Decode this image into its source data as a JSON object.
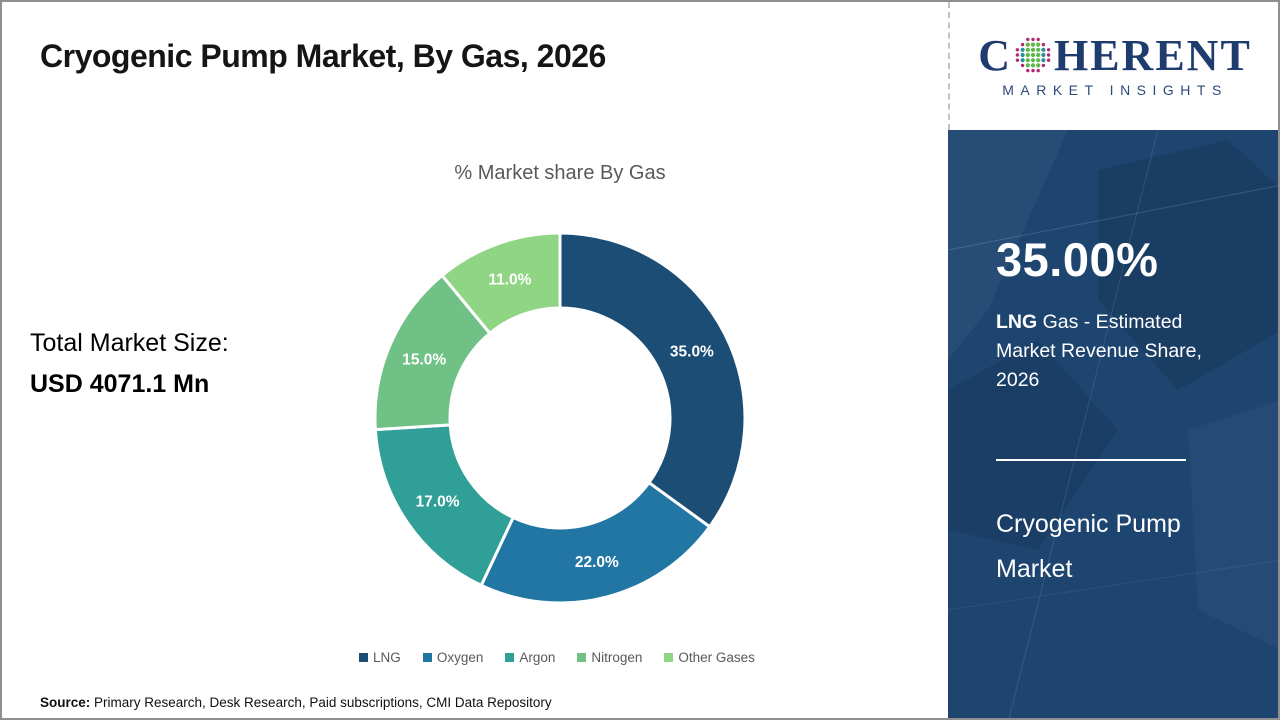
{
  "slide": {
    "title": "Cryogenic Pump Market, By Gas, 2026",
    "source_label": "Source:",
    "source_text": " Primary Research, Desk Research, Paid subscriptions, CMI Data Repository"
  },
  "logo": {
    "brand_prefix": "C",
    "brand_suffix": "HERENT",
    "brand_subtitle": "MARKET INSIGHTS",
    "navy": "#1e3c6e",
    "globe_dot_colors": {
      "outer_ring": "#b62573",
      "inner_side": "#2a8f9e",
      "inner_center": "#5cb849"
    }
  },
  "left_panel": {
    "total_label": "Total Market Size:",
    "total_value": "USD 4071.1 Mn"
  },
  "sidebar": {
    "bg": "#1e4470",
    "highlight_value": "35.00%",
    "highlight_bold": "LNG",
    "highlight_desc": " Gas - Estimated Market Revenue Share, 2026",
    "market_name": "Cryogenic Pump Market"
  },
  "chart_data": {
    "type": "pie",
    "donut": true,
    "title": "% Market share By Gas",
    "categories": [
      "LNG",
      "Oxygen",
      "Argon",
      "Nitrogen",
      "Other Gases"
    ],
    "values": [
      35.0,
      22.0,
      17.0,
      15.0,
      11.0
    ],
    "labels": [
      "35.0%",
      "22.0%",
      "17.0%",
      "15.0%",
      "11.0%"
    ],
    "colors": [
      "#1c4e75",
      "#2176a3",
      "#2f9f97",
      "#6fc186",
      "#8fd584"
    ],
    "start_angle_deg": 0,
    "direction": "clockwise",
    "legend_position": "bottom",
    "outer_radius_px": 185,
    "inner_radius_px": 110,
    "label_radius_px": 148,
    "slice_border_color": "#ffffff"
  }
}
